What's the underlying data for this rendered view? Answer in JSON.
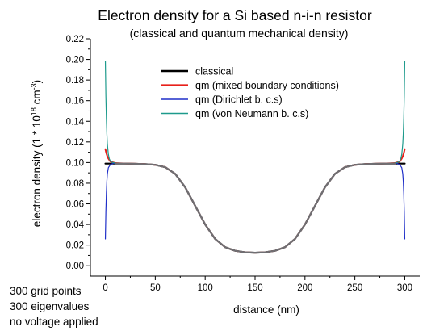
{
  "chart_data": {
    "type": "line",
    "title": "Electron density for a Si based n-i-n resistor",
    "subtitle": "(classical and quantum mechanical density)",
    "xlabel": "distance (nm)",
    "ylabel": "electron density (1 * 10^18 cm^-3)",
    "ylabel_parts": {
      "prefix": "electron density (1 * 10",
      "exp1": "18",
      "mid": " cm",
      "exp2": "-3",
      "suffix": ")"
    },
    "xlim": [
      -15,
      315
    ],
    "ylim": [
      -0.01,
      0.22
    ],
    "x_ticks": [
      0,
      50,
      100,
      150,
      200,
      250,
      300
    ],
    "x_tick_labels": [
      "0",
      "50",
      "100",
      "150",
      "200",
      "250",
      "300"
    ],
    "y_ticks": [
      0.0,
      0.02,
      0.04,
      0.06,
      0.08,
      0.1,
      0.12,
      0.14,
      0.16,
      0.18,
      0.2,
      0.22
    ],
    "y_tick_labels": [
      "0.00",
      "0.02",
      "0.04",
      "0.06",
      "0.08",
      "0.10",
      "0.12",
      "0.14",
      "0.16",
      "0.18",
      "0.20",
      "0.22"
    ],
    "grid": false,
    "legend_position": "upper-center",
    "series": [
      {
        "name": "classical",
        "color": "#000000",
        "width": 2.2,
        "x": [
          0,
          1,
          2,
          3,
          5,
          10,
          20,
          30,
          40,
          50,
          60,
          70,
          80,
          90,
          100,
          110,
          120,
          130,
          140,
          150,
          160,
          170,
          180,
          190,
          200,
          210,
          220,
          230,
          240,
          250,
          260,
          270,
          280,
          290,
          295,
          297,
          298,
          299,
          300
        ],
        "y": [
          0.099,
          0.099,
          0.099,
          0.099,
          0.099,
          0.099,
          0.099,
          0.0988,
          0.0985,
          0.0978,
          0.0955,
          0.089,
          0.076,
          0.058,
          0.04,
          0.026,
          0.018,
          0.0145,
          0.013,
          0.0126,
          0.013,
          0.0145,
          0.018,
          0.026,
          0.04,
          0.058,
          0.076,
          0.089,
          0.0955,
          0.0978,
          0.0985,
          0.0988,
          0.099,
          0.099,
          0.099,
          0.099,
          0.099,
          0.099,
          0.099
        ]
      },
      {
        "name": "qm (mixed boundary conditions)",
        "color": "#e8201a",
        "width": 2.0,
        "x": [
          0,
          1,
          2,
          3,
          5,
          10,
          20,
          30,
          40,
          50,
          60,
          70,
          80,
          90,
          100,
          110,
          120,
          130,
          140,
          150,
          160,
          170,
          180,
          190,
          200,
          210,
          220,
          230,
          240,
          250,
          260,
          270,
          280,
          290,
          295,
          297,
          298,
          299,
          300
        ],
        "y": [
          0.113,
          0.109,
          0.106,
          0.104,
          0.101,
          0.0995,
          0.099,
          0.0988,
          0.0985,
          0.0978,
          0.0955,
          0.089,
          0.076,
          0.058,
          0.04,
          0.026,
          0.018,
          0.0145,
          0.013,
          0.0126,
          0.013,
          0.0145,
          0.018,
          0.026,
          0.04,
          0.058,
          0.076,
          0.089,
          0.0955,
          0.0978,
          0.0985,
          0.0988,
          0.099,
          0.0995,
          0.101,
          0.104,
          0.106,
          0.109,
          0.113
        ]
      },
      {
        "name": "qm (Dirichlet b. c.s)",
        "color": "#1f2fc8",
        "width": 1.2,
        "x": [
          0,
          0.5,
          1,
          1.5,
          2,
          3,
          5,
          8,
          12,
          20,
          30,
          40,
          50,
          60,
          70,
          80,
          90,
          100,
          110,
          120,
          130,
          140,
          150,
          160,
          170,
          180,
          190,
          200,
          210,
          220,
          230,
          240,
          250,
          260,
          270,
          280,
          288,
          292,
          295,
          297,
          298,
          298.5,
          299,
          299.5,
          300
        ],
        "y": [
          0.026,
          0.052,
          0.07,
          0.082,
          0.089,
          0.095,
          0.098,
          0.0993,
          0.0993,
          0.099,
          0.0988,
          0.0985,
          0.0978,
          0.0955,
          0.089,
          0.076,
          0.058,
          0.04,
          0.026,
          0.018,
          0.0145,
          0.013,
          0.0126,
          0.013,
          0.0145,
          0.018,
          0.026,
          0.04,
          0.058,
          0.076,
          0.089,
          0.0955,
          0.0978,
          0.0985,
          0.0988,
          0.099,
          0.0993,
          0.0993,
          0.098,
          0.095,
          0.089,
          0.082,
          0.07,
          0.052,
          0.026
        ]
      },
      {
        "name": "qm (von Neumann b. c.s)",
        "color": "#1d9a8c",
        "width": 1.2,
        "x": [
          0,
          0.5,
          1,
          1.5,
          2,
          3,
          4,
          5,
          7,
          10,
          15,
          20,
          30,
          40,
          50,
          60,
          70,
          80,
          90,
          100,
          110,
          120,
          130,
          140,
          150,
          160,
          170,
          180,
          190,
          200,
          210,
          220,
          230,
          240,
          250,
          260,
          270,
          280,
          285,
          290,
          293,
          295,
          296,
          297,
          298,
          298.5,
          299,
          299.5,
          300
        ],
        "y": [
          0.198,
          0.165,
          0.143,
          0.128,
          0.118,
          0.108,
          0.1035,
          0.1015,
          0.1002,
          0.0995,
          0.0992,
          0.099,
          0.0988,
          0.0985,
          0.0978,
          0.0955,
          0.089,
          0.076,
          0.058,
          0.04,
          0.026,
          0.018,
          0.0145,
          0.013,
          0.0126,
          0.013,
          0.0145,
          0.018,
          0.026,
          0.04,
          0.058,
          0.076,
          0.089,
          0.0955,
          0.0978,
          0.0985,
          0.0988,
          0.099,
          0.0992,
          0.0995,
          0.1002,
          0.1015,
          0.1035,
          0.108,
          0.118,
          0.128,
          0.143,
          0.165,
          0.198
        ]
      }
    ]
  },
  "notes": {
    "grid_points": "300 grid points",
    "eigenvalues": "300 eigenvalues",
    "voltage": "no voltage applied"
  }
}
